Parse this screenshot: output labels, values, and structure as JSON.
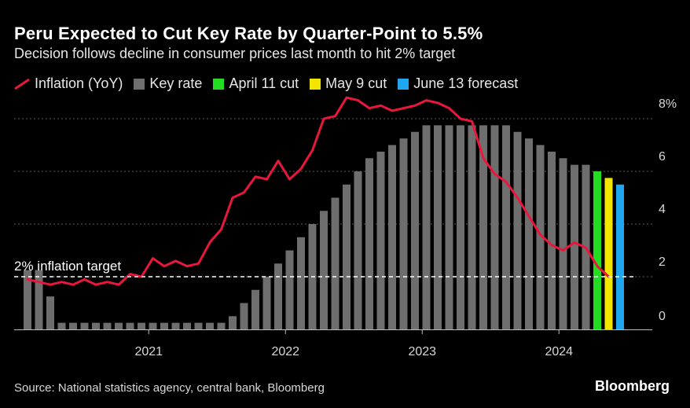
{
  "title": "Peru Expected to Cut Key Rate by Quarter-Point to 5.5%",
  "subtitle": "Decision follows decline in consumer prices last month to hit 2% target",
  "legend": [
    {
      "label": "Inflation (YoY)",
      "kind": "line",
      "color": "#e8173b"
    },
    {
      "label": "Key rate",
      "kind": "box",
      "color": "#6e6e6e"
    },
    {
      "label": "April 11 cut",
      "kind": "box",
      "color": "#22dd22"
    },
    {
      "label": "May 9 cut",
      "kind": "box",
      "color": "#f2e600"
    },
    {
      "label": "June 13 forecast",
      "kind": "box",
      "color": "#1fa6ef"
    }
  ],
  "source": "Source: National statistics agency, central bank, Bloomberg",
  "brand": "Bloomberg",
  "annotation": "2% inflation target",
  "chart_data": {
    "type": "bar",
    "title": "Peru Expected to Cut Key Rate by Quarter-Point to 5.5%",
    "ylim": [
      0,
      8
    ],
    "y_ticks": [
      0,
      2,
      4,
      6,
      8
    ],
    "y_tick_labels": [
      "0",
      "2",
      "4",
      "6",
      "8%"
    ],
    "x_ticks": [
      "2021",
      "2022",
      "2023",
      "2024"
    ],
    "grid": true,
    "reference_line": {
      "y": 2,
      "label": "2% inflation target",
      "style": "dashed"
    },
    "categories": [
      "2020-02",
      "2020-03",
      "2020-04",
      "2020-05",
      "2020-06",
      "2020-07",
      "2020-08",
      "2020-09",
      "2020-10",
      "2020-11",
      "2020-12",
      "2021-01",
      "2021-02",
      "2021-03",
      "2021-04",
      "2021-05",
      "2021-06",
      "2021-07",
      "2021-08",
      "2021-09",
      "2021-10",
      "2021-11",
      "2021-12",
      "2022-01",
      "2022-02",
      "2022-03",
      "2022-04",
      "2022-05",
      "2022-06",
      "2022-07",
      "2022-08",
      "2022-09",
      "2022-10",
      "2022-11",
      "2022-12",
      "2023-01",
      "2023-02",
      "2023-03",
      "2023-04",
      "2023-05",
      "2023-06",
      "2023-07",
      "2023-08",
      "2023-09",
      "2023-10",
      "2023-11",
      "2023-12",
      "2024-01",
      "2024-02",
      "2024-03",
      "2024-04",
      "2024-05",
      "2024-06"
    ],
    "series": [
      {
        "name": "Key rate",
        "kind": "bar",
        "values": [
          2.25,
          2.25,
          1.25,
          0.25,
          0.25,
          0.25,
          0.25,
          0.25,
          0.25,
          0.25,
          0.25,
          0.25,
          0.25,
          0.25,
          0.25,
          0.25,
          0.25,
          0.25,
          0.5,
          1.0,
          1.5,
          2.0,
          2.5,
          3.0,
          3.5,
          4.0,
          4.5,
          5.0,
          5.5,
          6.0,
          6.5,
          6.75,
          7.0,
          7.25,
          7.5,
          7.75,
          7.75,
          7.75,
          7.75,
          7.75,
          7.75,
          7.75,
          7.75,
          7.5,
          7.25,
          7.0,
          6.75,
          6.5,
          6.25,
          6.25,
          6.0,
          5.75,
          5.5
        ],
        "colors": {
          "2024-04": "#22dd22",
          "2024-05": "#f2e600",
          "2024-06": "#1fa6ef"
        }
      },
      {
        "name": "Inflation (YoY)",
        "kind": "line",
        "x": [
          "2020-02",
          "2020-03",
          "2020-04",
          "2020-05",
          "2020-06",
          "2020-07",
          "2020-08",
          "2020-09",
          "2020-10",
          "2020-11",
          "2020-12",
          "2021-01",
          "2021-02",
          "2021-03",
          "2021-04",
          "2021-05",
          "2021-06",
          "2021-07",
          "2021-08",
          "2021-09",
          "2021-10",
          "2021-11",
          "2021-12",
          "2022-01",
          "2022-02",
          "2022-03",
          "2022-04",
          "2022-05",
          "2022-06",
          "2022-07",
          "2022-08",
          "2022-09",
          "2022-10",
          "2022-11",
          "2022-12",
          "2023-01",
          "2023-02",
          "2023-03",
          "2023-04",
          "2023-05",
          "2023-06",
          "2023-07",
          "2023-08",
          "2023-09",
          "2023-10",
          "2023-11",
          "2023-12",
          "2024-01",
          "2024-02",
          "2024-03",
          "2024-04",
          "2024-05"
        ],
        "values": [
          1.9,
          1.8,
          1.7,
          1.8,
          1.7,
          1.9,
          1.7,
          1.8,
          1.7,
          2.1,
          2.0,
          2.7,
          2.4,
          2.6,
          2.4,
          2.5,
          3.3,
          3.8,
          5.0,
          5.2,
          5.8,
          5.7,
          6.4,
          5.7,
          6.1,
          6.8,
          8.0,
          8.1,
          8.8,
          8.7,
          8.4,
          8.5,
          8.3,
          8.4,
          8.5,
          8.7,
          8.6,
          8.4,
          8.0,
          7.9,
          6.5,
          5.9,
          5.6,
          5.0,
          4.3,
          3.6,
          3.2,
          3.0,
          3.3,
          3.1,
          2.4,
          2.0
        ]
      }
    ]
  }
}
